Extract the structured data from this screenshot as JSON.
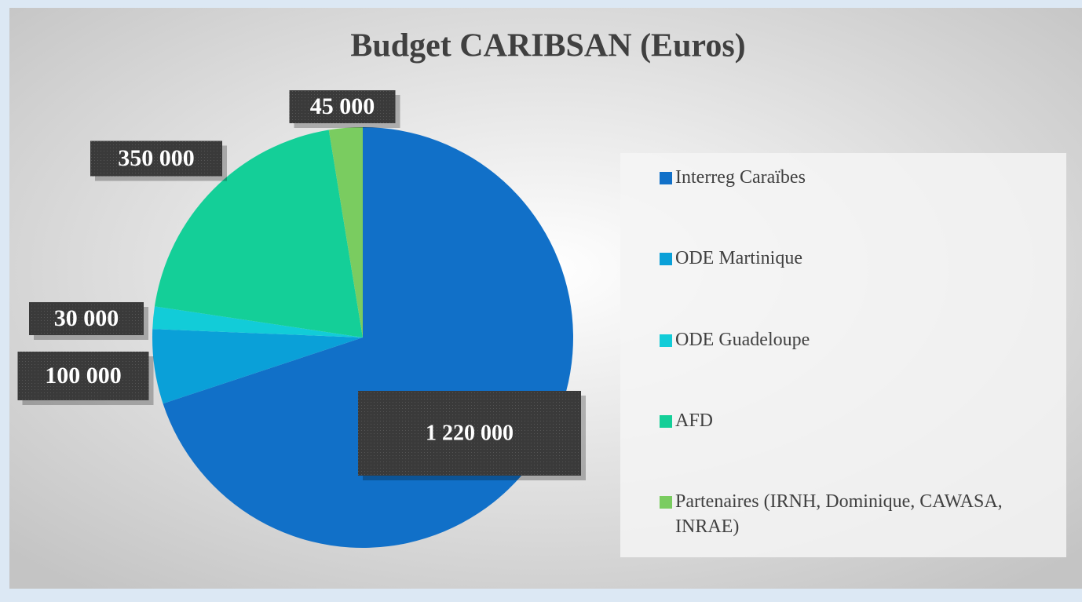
{
  "chart_data": {
    "type": "pie",
    "title": "Budget CARIBSAN (Euros)",
    "categories": [
      "Interreg Caraïbes",
      "ODE Martinique",
      "ODE Guadeloupe",
      "AFD",
      "Partenaires (IRNH, Dominique, CAWASA, INRAE)"
    ],
    "values": [
      1220000,
      100000,
      30000,
      350000,
      45000
    ],
    "value_labels": [
      "1 220 000",
      "100 000",
      "30 000",
      "350 000",
      "45 000"
    ],
    "colors": [
      "#1170c8",
      "#0aa0d8",
      "#12ccd8",
      "#14cf98",
      "#7acc60"
    ]
  }
}
